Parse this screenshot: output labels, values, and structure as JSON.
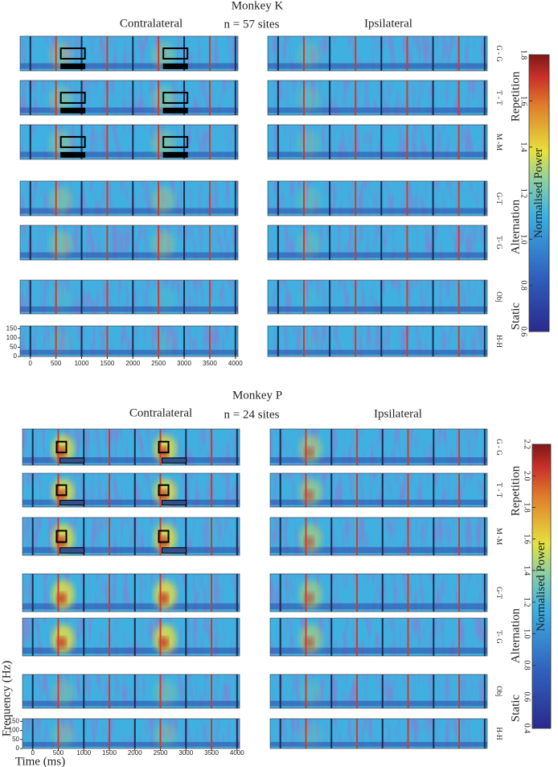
{
  "panels": [
    {
      "title": "Monkey K",
      "subtitle": "n = 57 sites",
      "columns": [
        "Contralateral",
        "Ipsilateral"
      ],
      "rows": [
        "G - G",
        "T - T",
        "M -M",
        "G-T",
        "T- G",
        "Obj",
        "H-H"
      ],
      "groups": [
        "Repetition",
        "Alternation",
        "Static"
      ],
      "xlim": [
        -200,
        4050
      ],
      "xticks": [
        0,
        500,
        1000,
        1500,
        2000,
        2500,
        3000,
        3500,
        4000
      ],
      "ylim": [
        0,
        165
      ],
      "yticks": [
        0,
        50,
        100,
        150
      ],
      "colorbar": {
        "label": "Normalised Power",
        "range": [
          0.6,
          1.8
        ],
        "ticks": [
          0.6,
          0.8,
          {
            "value": 1,
            "label": "1.0"
          },
          1.2,
          1.4,
          1.6,
          1.8
        ]
      }
    },
    {
      "title": "Monkey P",
      "subtitle": "n = 24 sites",
      "columns": [
        "Contralateral",
        "Ipsilateral"
      ],
      "rows": [
        "G - G",
        "T - T",
        "M -M",
        "G-T",
        "T- G",
        "Obj",
        "H-H"
      ],
      "groups": [
        "Repetition",
        "Alternation",
        "Static"
      ],
      "xlim": [
        -200,
        4050
      ],
      "xticks": [
        0,
        500,
        1000,
        1500,
        2000,
        2500,
        3000,
        3500,
        4000
      ],
      "ylim": [
        0,
        165
      ],
      "yticks": [
        0,
        50,
        100,
        150
      ],
      "xlabel": "Time (ms)",
      "ylabel": "Frequency (Hz)",
      "colorbar": {
        "label": "Normalised Power",
        "range": [
          0.4,
          2.2
        ],
        "ticks": [
          0.4,
          0.6,
          0.8,
          {
            "value": 1,
            "label": "1.0"
          },
          1.2,
          1.4,
          1.6,
          1.8,
          {
            "value": 2,
            "label": "2.0"
          },
          2.2
        ]
      }
    }
  ]
}
